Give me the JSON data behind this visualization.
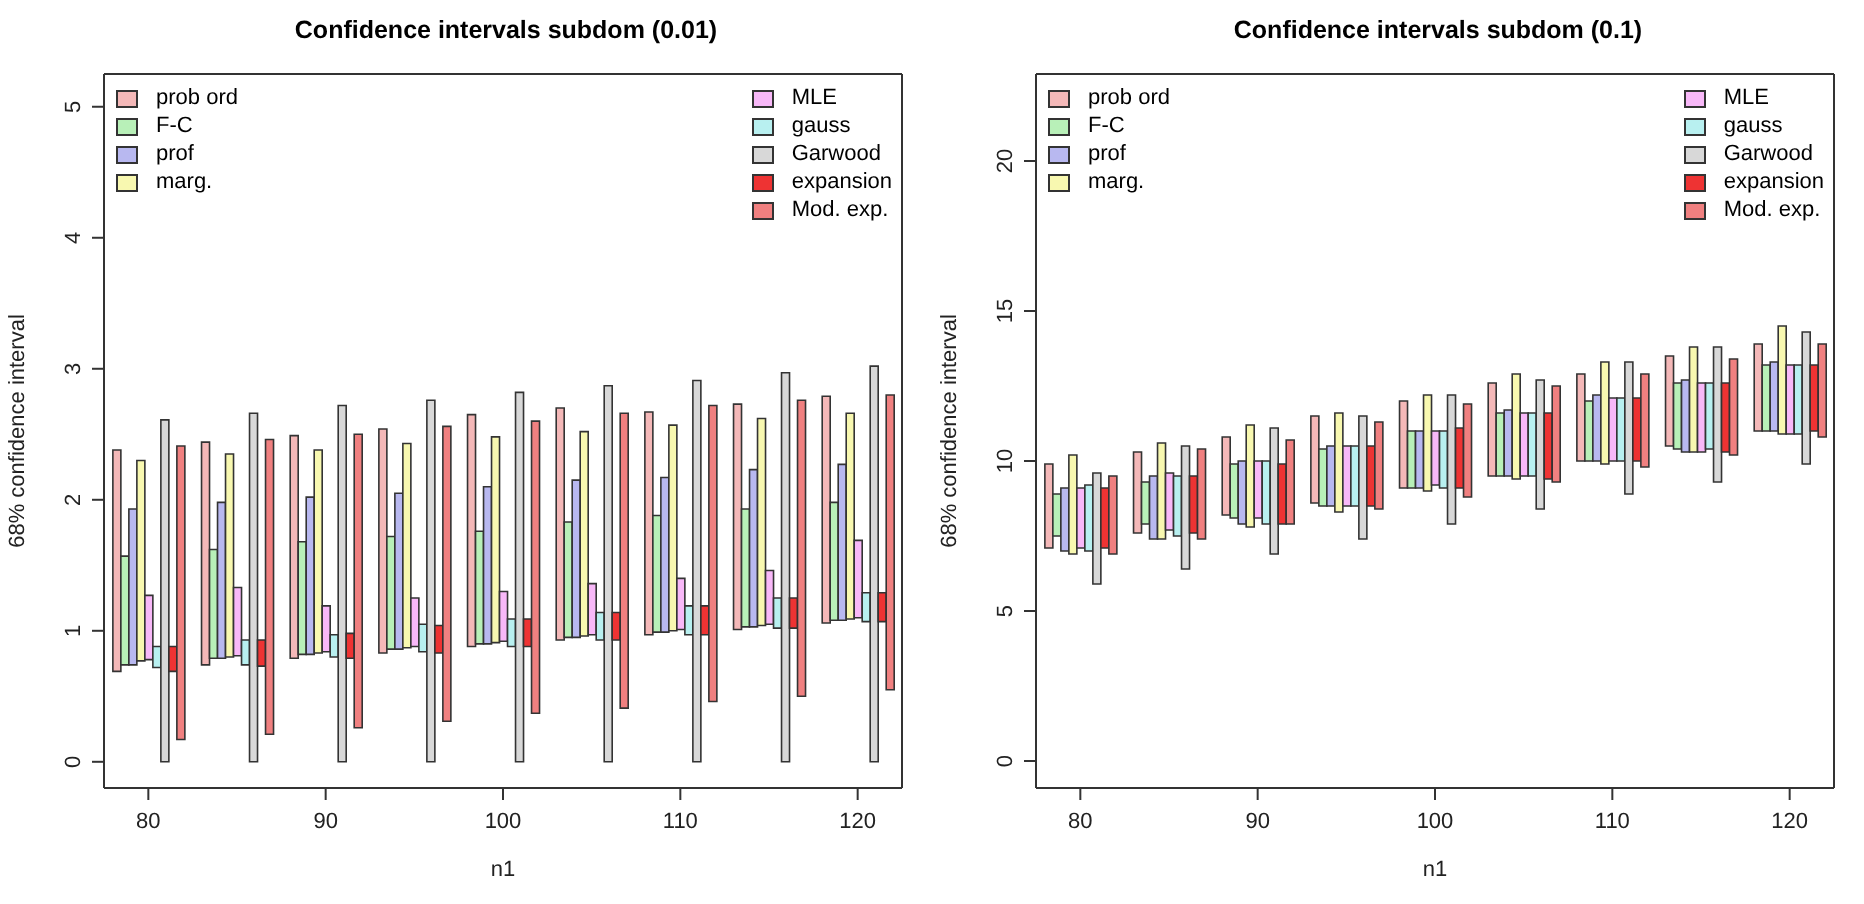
{
  "chart_data": [
    {
      "type": "bar",
      "title": "Confidence intervals subdom (0.01)",
      "xlabel": "n1",
      "ylabel": "68% confidence interval",
      "categories": [
        "80",
        null,
        "90",
        null,
        "100",
        null,
        "110",
        null,
        "120"
      ],
      "ylim": [
        -0.2,
        5.25
      ],
      "yticks": [
        0,
        1,
        2,
        3,
        4,
        5
      ],
      "legend": "top",
      "series": [
        {
          "name": "prob ord",
          "color": "#f4b8b8",
          "base": [
            0.69,
            0.74,
            0.79,
            0.83,
            0.88,
            0.93,
            0.97,
            1.01,
            1.06
          ],
          "values": [
            1.69,
            1.7,
            1.7,
            1.71,
            1.77,
            1.77,
            1.7,
            1.72,
            1.73
          ]
        },
        {
          "name": "F-C",
          "color": "#b8f0b8",
          "base": [
            0.74,
            0.79,
            0.82,
            0.86,
            0.9,
            0.95,
            0.99,
            1.03,
            1.08
          ],
          "values": [
            0.83,
            0.83,
            0.86,
            0.86,
            0.86,
            0.88,
            0.89,
            0.9,
            0.9
          ]
        },
        {
          "name": "prof",
          "color": "#b8b8f0",
          "base": [
            0.74,
            0.79,
            0.82,
            0.86,
            0.9,
            0.95,
            0.99,
            1.03,
            1.08
          ],
          "values": [
            1.19,
            1.19,
            1.2,
            1.19,
            1.2,
            1.2,
            1.18,
            1.2,
            1.19
          ]
        },
        {
          "name": "marg.",
          "color": "#f8f8b0",
          "base": [
            0.77,
            0.8,
            0.83,
            0.87,
            0.91,
            0.96,
            1.0,
            1.04,
            1.09
          ],
          "values": [
            1.53,
            1.55,
            1.55,
            1.56,
            1.57,
            1.56,
            1.57,
            1.58,
            1.57
          ]
        },
        {
          "name": "MLE",
          "color": "#f8b8f8",
          "base": [
            0.78,
            0.81,
            0.84,
            0.88,
            0.92,
            0.97,
            1.01,
            1.05,
            1.1
          ],
          "values": [
            0.49,
            0.52,
            0.35,
            0.37,
            0.38,
            0.39,
            0.39,
            0.41,
            0.59
          ]
        },
        {
          "name": "gauss",
          "color": "#b8f0f0",
          "base": [
            0.72,
            0.74,
            0.8,
            0.84,
            0.88,
            0.93,
            0.97,
            1.02,
            1.07
          ],
          "values": [
            0.16,
            0.19,
            0.17,
            0.21,
            0.21,
            0.21,
            0.22,
            0.23,
            0.22
          ]
        },
        {
          "name": "Garwood",
          "color": "#d8d8d8",
          "base": [
            0,
            0,
            0,
            0,
            0,
            0,
            0,
            0,
            0
          ],
          "values": [
            2.61,
            2.66,
            2.72,
            2.76,
            2.82,
            2.87,
            2.91,
            2.97,
            3.02
          ]
        },
        {
          "name": "expansion",
          "color": "#ee3333",
          "base": [
            0.69,
            0.73,
            0.79,
            0.83,
            0.88,
            0.93,
            0.97,
            1.02,
            1.07
          ],
          "values": [
            0.19,
            0.2,
            0.19,
            0.21,
            0.21,
            0.21,
            0.22,
            0.23,
            0.22
          ]
        },
        {
          "name": "Mod. exp.",
          "color": "#f08080",
          "base": [
            0.17,
            0.21,
            0.26,
            0.31,
            0.37,
            0.41,
            0.46,
            0.5,
            0.55
          ],
          "values": [
            2.24,
            2.25,
            2.24,
            2.25,
            2.23,
            2.25,
            2.26,
            2.26,
            2.25
          ]
        }
      ]
    },
    {
      "type": "bar",
      "title": "Confidence intervals subdom (0.1)",
      "xlabel": "n1",
      "ylabel": "68% confidence interval",
      "categories": [
        "80",
        null,
        "90",
        null,
        "100",
        null,
        "110",
        null,
        "120"
      ],
      "ylim": [
        -0.9,
        22.9
      ],
      "yticks": [
        0,
        5,
        10,
        15,
        20
      ],
      "legend": "top",
      "series": [
        {
          "name": "prob ord",
          "color": "#f4b8b8",
          "base": [
            7.1,
            7.6,
            8.2,
            8.6,
            9.1,
            9.5,
            10.0,
            10.5,
            11.0
          ],
          "values": [
            2.8,
            2.7,
            2.6,
            2.9,
            2.9,
            3.1,
            2.9,
            3.0,
            2.9
          ]
        },
        {
          "name": "F-C",
          "color": "#b8f0b8",
          "base": [
            7.5,
            7.9,
            8.1,
            8.5,
            9.1,
            9.5,
            10.0,
            10.4,
            11.0
          ],
          "values": [
            1.4,
            1.4,
            1.8,
            1.9,
            1.9,
            2.1,
            2.0,
            2.2,
            2.2
          ]
        },
        {
          "name": "prof",
          "color": "#b8b8f0",
          "base": [
            7.0,
            7.4,
            7.9,
            8.5,
            9.1,
            9.5,
            10.0,
            10.3,
            11.0
          ],
          "values": [
            2.1,
            2.1,
            2.1,
            2.0,
            1.9,
            2.2,
            2.2,
            2.4,
            2.3
          ]
        },
        {
          "name": "marg.",
          "color": "#f8f8b0",
          "base": [
            6.9,
            7.4,
            7.8,
            8.3,
            9.0,
            9.4,
            9.9,
            10.3,
            10.9
          ],
          "values": [
            3.3,
            3.2,
            3.4,
            3.3,
            3.2,
            3.5,
            3.4,
            3.5,
            3.6
          ]
        },
        {
          "name": "MLE",
          "color": "#f8b8f8",
          "base": [
            7.1,
            7.7,
            8.1,
            8.5,
            9.2,
            9.5,
            10.0,
            10.3,
            10.9
          ],
          "values": [
            2.0,
            1.9,
            1.9,
            2.0,
            1.8,
            2.1,
            2.1,
            2.3,
            2.3
          ]
        },
        {
          "name": "gauss",
          "color": "#b8f0f0",
          "base": [
            7.0,
            7.5,
            7.9,
            8.5,
            9.1,
            9.5,
            10.0,
            10.4,
            10.9
          ],
          "values": [
            2.2,
            2.0,
            2.1,
            2.0,
            1.9,
            2.1,
            2.1,
            2.2,
            2.3
          ]
        },
        {
          "name": "Garwood",
          "color": "#d8d8d8",
          "base": [
            5.9,
            6.4,
            6.9,
            7.4,
            7.9,
            8.4,
            8.9,
            9.3,
            9.9
          ],
          "values": [
            3.7,
            4.1,
            4.2,
            4.1,
            4.3,
            4.3,
            4.4,
            4.5,
            4.4
          ]
        },
        {
          "name": "expansion",
          "color": "#ee3333",
          "base": [
            7.1,
            7.6,
            7.9,
            8.5,
            9.1,
            9.4,
            10.0,
            10.3,
            11.0
          ],
          "values": [
            2.0,
            1.9,
            2.0,
            2.0,
            2.0,
            2.2,
            2.1,
            2.3,
            2.2
          ]
        },
        {
          "name": "Mod. exp.",
          "color": "#f08080",
          "base": [
            6.9,
            7.4,
            7.9,
            8.4,
            8.8,
            9.3,
            9.8,
            10.2,
            10.8
          ],
          "values": [
            2.6,
            3.0,
            2.8,
            2.9,
            3.1,
            3.2,
            3.1,
            3.2,
            3.1
          ]
        }
      ]
    }
  ]
}
